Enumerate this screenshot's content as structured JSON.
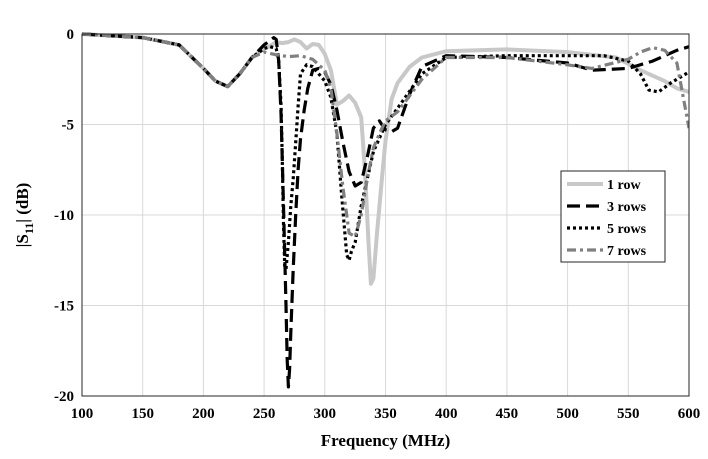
{
  "chart_data": {
    "type": "line",
    "title": "",
    "xlabel": "Frequency (MHz)",
    "ylabel": "|S11| (dB)",
    "ylabel_main": "|S",
    "ylabel_sub": "11",
    "ylabel_tail": "| (dB)",
    "xlim": [
      100,
      600
    ],
    "ylim": [
      -20,
      0
    ],
    "xticks": [
      100,
      150,
      200,
      250,
      300,
      350,
      400,
      450,
      500,
      550,
      600
    ],
    "yticks": [
      0,
      -5,
      -10,
      -15,
      -20
    ],
    "grid": true,
    "legend_position": "right",
    "series": [
      {
        "name": "1 row",
        "color": "#c8c8c8",
        "dash": "solid",
        "x": [
          100,
          150,
          180,
          200,
          210,
          220,
          230,
          240,
          250,
          255,
          260,
          265,
          270,
          275,
          280,
          285,
          290,
          295,
          300,
          305,
          310,
          315,
          320,
          325,
          330,
          333,
          336,
          338,
          340,
          343,
          347,
          350,
          355,
          360,
          370,
          380,
          400,
          450,
          500,
          540,
          560,
          580,
          590,
          600
        ],
        "y": [
          0,
          -0.2,
          -0.6,
          -1.9,
          -2.6,
          -2.9,
          -2.2,
          -1.3,
          -0.8,
          -0.65,
          -0.45,
          -0.5,
          -0.45,
          -0.3,
          -0.45,
          -0.8,
          -0.55,
          -0.6,
          -1.1,
          -2.0,
          -3.9,
          -3.7,
          -3.4,
          -3.8,
          -4.6,
          -7.5,
          -11.5,
          -13.8,
          -13.5,
          -11.0,
          -8.0,
          -5.9,
          -3.6,
          -2.7,
          -1.8,
          -1.3,
          -0.95,
          -0.85,
          -1.0,
          -1.3,
          -2.0,
          -2.6,
          -3.0,
          -3.2
        ]
      },
      {
        "name": "3 rows",
        "color": "#000000",
        "dash": "13,6",
        "x": [
          100,
          150,
          180,
          200,
          210,
          220,
          230,
          240,
          250,
          255,
          258,
          260,
          262,
          264,
          266,
          268,
          269,
          270,
          271,
          272,
          274,
          276,
          278,
          280,
          283,
          286,
          290,
          295,
          300,
          305,
          310,
          315,
          320,
          325,
          330,
          335,
          340,
          345,
          350,
          355,
          360,
          370,
          380,
          400,
          450,
          500,
          520,
          550,
          570,
          590,
          600
        ],
        "y": [
          0,
          -0.2,
          -0.6,
          -1.9,
          -2.6,
          -2.9,
          -2.2,
          -1.3,
          -0.6,
          -0.35,
          -0.2,
          -0.3,
          -1.5,
          -4.5,
          -9.5,
          -15.0,
          -18.0,
          -19.5,
          -18.5,
          -16.5,
          -13.0,
          -10.0,
          -7.5,
          -5.8,
          -4.2,
          -3.0,
          -2.0,
          -1.9,
          -2.1,
          -2.8,
          -4.2,
          -6.0,
          -7.6,
          -8.4,
          -8.2,
          -6.8,
          -5.2,
          -4.8,
          -5.3,
          -5.4,
          -5.2,
          -3.3,
          -1.8,
          -1.2,
          -1.3,
          -1.6,
          -2.0,
          -1.9,
          -1.5,
          -0.9,
          -0.7
        ]
      },
      {
        "name": "5 rows",
        "color": "#000000",
        "dash": "3,3",
        "x": [
          100,
          150,
          180,
          200,
          210,
          220,
          230,
          240,
          250,
          255,
          260,
          262,
          264,
          265,
          266,
          267,
          268,
          270,
          272,
          274,
          276,
          278,
          280,
          285,
          290,
          295,
          300,
          305,
          310,
          314,
          318,
          320,
          322,
          325,
          330,
          340,
          350,
          360,
          380,
          400,
          450,
          500,
          530,
          550,
          560,
          567,
          575,
          585,
          600
        ],
        "y": [
          0,
          -0.2,
          -0.6,
          -1.9,
          -2.6,
          -2.9,
          -2.2,
          -1.3,
          -0.8,
          -0.7,
          -0.8,
          -1.5,
          -4.0,
          -7.0,
          -10.5,
          -12.8,
          -13.0,
          -11.5,
          -9.5,
          -8.0,
          -6.0,
          -4.0,
          -2.2,
          -1.7,
          -1.8,
          -2.2,
          -2.6,
          -3.5,
          -5.5,
          -9.0,
          -12.2,
          -12.5,
          -12.0,
          -11.5,
          -9.5,
          -6.5,
          -5.0,
          -4.1,
          -2.2,
          -1.3,
          -1.2,
          -1.2,
          -1.2,
          -1.5,
          -2.2,
          -3.1,
          -3.2,
          -2.7,
          -2.1
        ]
      },
      {
        "name": "7 rows",
        "color": "#808080",
        "dash": "9,4,3,4",
        "x": [
          100,
          150,
          180,
          200,
          210,
          220,
          230,
          240,
          250,
          260,
          270,
          280,
          290,
          300,
          305,
          310,
          315,
          318,
          320,
          325,
          330,
          335,
          340,
          345,
          350,
          360,
          380,
          400,
          450,
          500,
          520,
          550,
          560,
          570,
          580,
          590,
          600
        ],
        "y": [
          0,
          -0.2,
          -0.6,
          -1.9,
          -2.6,
          -2.9,
          -2.2,
          -1.3,
          -1.0,
          -1.15,
          -1.25,
          -1.2,
          -1.4,
          -2.0,
          -3.0,
          -5.5,
          -8.5,
          -10.0,
          -11.0,
          -11.2,
          -10.0,
          -8.0,
          -6.3,
          -5.5,
          -4.8,
          -4.3,
          -2.5,
          -1.3,
          -1.3,
          -1.7,
          -1.9,
          -1.4,
          -1.0,
          -0.75,
          -0.9,
          -1.6,
          -5.2
        ]
      }
    ]
  }
}
